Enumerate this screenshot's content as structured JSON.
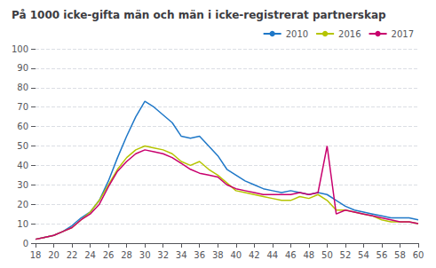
{
  "chart_data": {
    "type": "line",
    "title": "På 1000 icke-gifta män och män i icke-registrerat partnerskap",
    "x": [
      18,
      19,
      20,
      21,
      22,
      23,
      24,
      25,
      26,
      27,
      28,
      29,
      30,
      31,
      32,
      33,
      34,
      35,
      36,
      37,
      38,
      39,
      40,
      41,
      42,
      43,
      44,
      45,
      46,
      47,
      48,
      49,
      50,
      51,
      52,
      53,
      54,
      55,
      56,
      57,
      58,
      59,
      60
    ],
    "series": [
      {
        "name": "2010",
        "color": "#1f78c8",
        "values": [
          2,
          3,
          4,
          6,
          9,
          13,
          16,
          22,
          32,
          44,
          55,
          65,
          73,
          70,
          66,
          62,
          55,
          54,
          55,
          50,
          45,
          38,
          35,
          32,
          30,
          28,
          27,
          26,
          27,
          26,
          25,
          26,
          25,
          22,
          19,
          17,
          16,
          15,
          14,
          13,
          13,
          13,
          12
        ]
      },
      {
        "name": "2016",
        "color": "#b5c400",
        "values": [
          2,
          3,
          4,
          6,
          8,
          12,
          16,
          22,
          30,
          38,
          44,
          48,
          50,
          49,
          48,
          46,
          42,
          40,
          42,
          38,
          35,
          31,
          27,
          26,
          25,
          24,
          23,
          22,
          22,
          24,
          23,
          25,
          22,
          17,
          17,
          16,
          15,
          14,
          12,
          11,
          11,
          11,
          10
        ]
      },
      {
        "name": "2017",
        "color": "#c8006e",
        "values": [
          2,
          3,
          4,
          6,
          8,
          12,
          15,
          20,
          29,
          37,
          42,
          46,
          48,
          47,
          46,
          44,
          41,
          38,
          36,
          35,
          34,
          30,
          28,
          27,
          26,
          25,
          25,
          25,
          25,
          26,
          25,
          26,
          50,
          15,
          17,
          16,
          15,
          14,
          13,
          12,
          11,
          11,
          10
        ]
      }
    ],
    "xlim": [
      18,
      60
    ],
    "xticks": [
      18,
      20,
      22,
      24,
      26,
      28,
      30,
      32,
      34,
      36,
      38,
      40,
      42,
      44,
      46,
      48,
      50,
      52,
      54,
      56,
      58,
      60
    ],
    "ylim": [
      0,
      100
    ],
    "yticks": [
      0,
      10,
      20,
      30,
      40,
      50,
      60,
      70,
      80,
      90,
      100
    ],
    "grid": true,
    "legend": "upper right"
  }
}
